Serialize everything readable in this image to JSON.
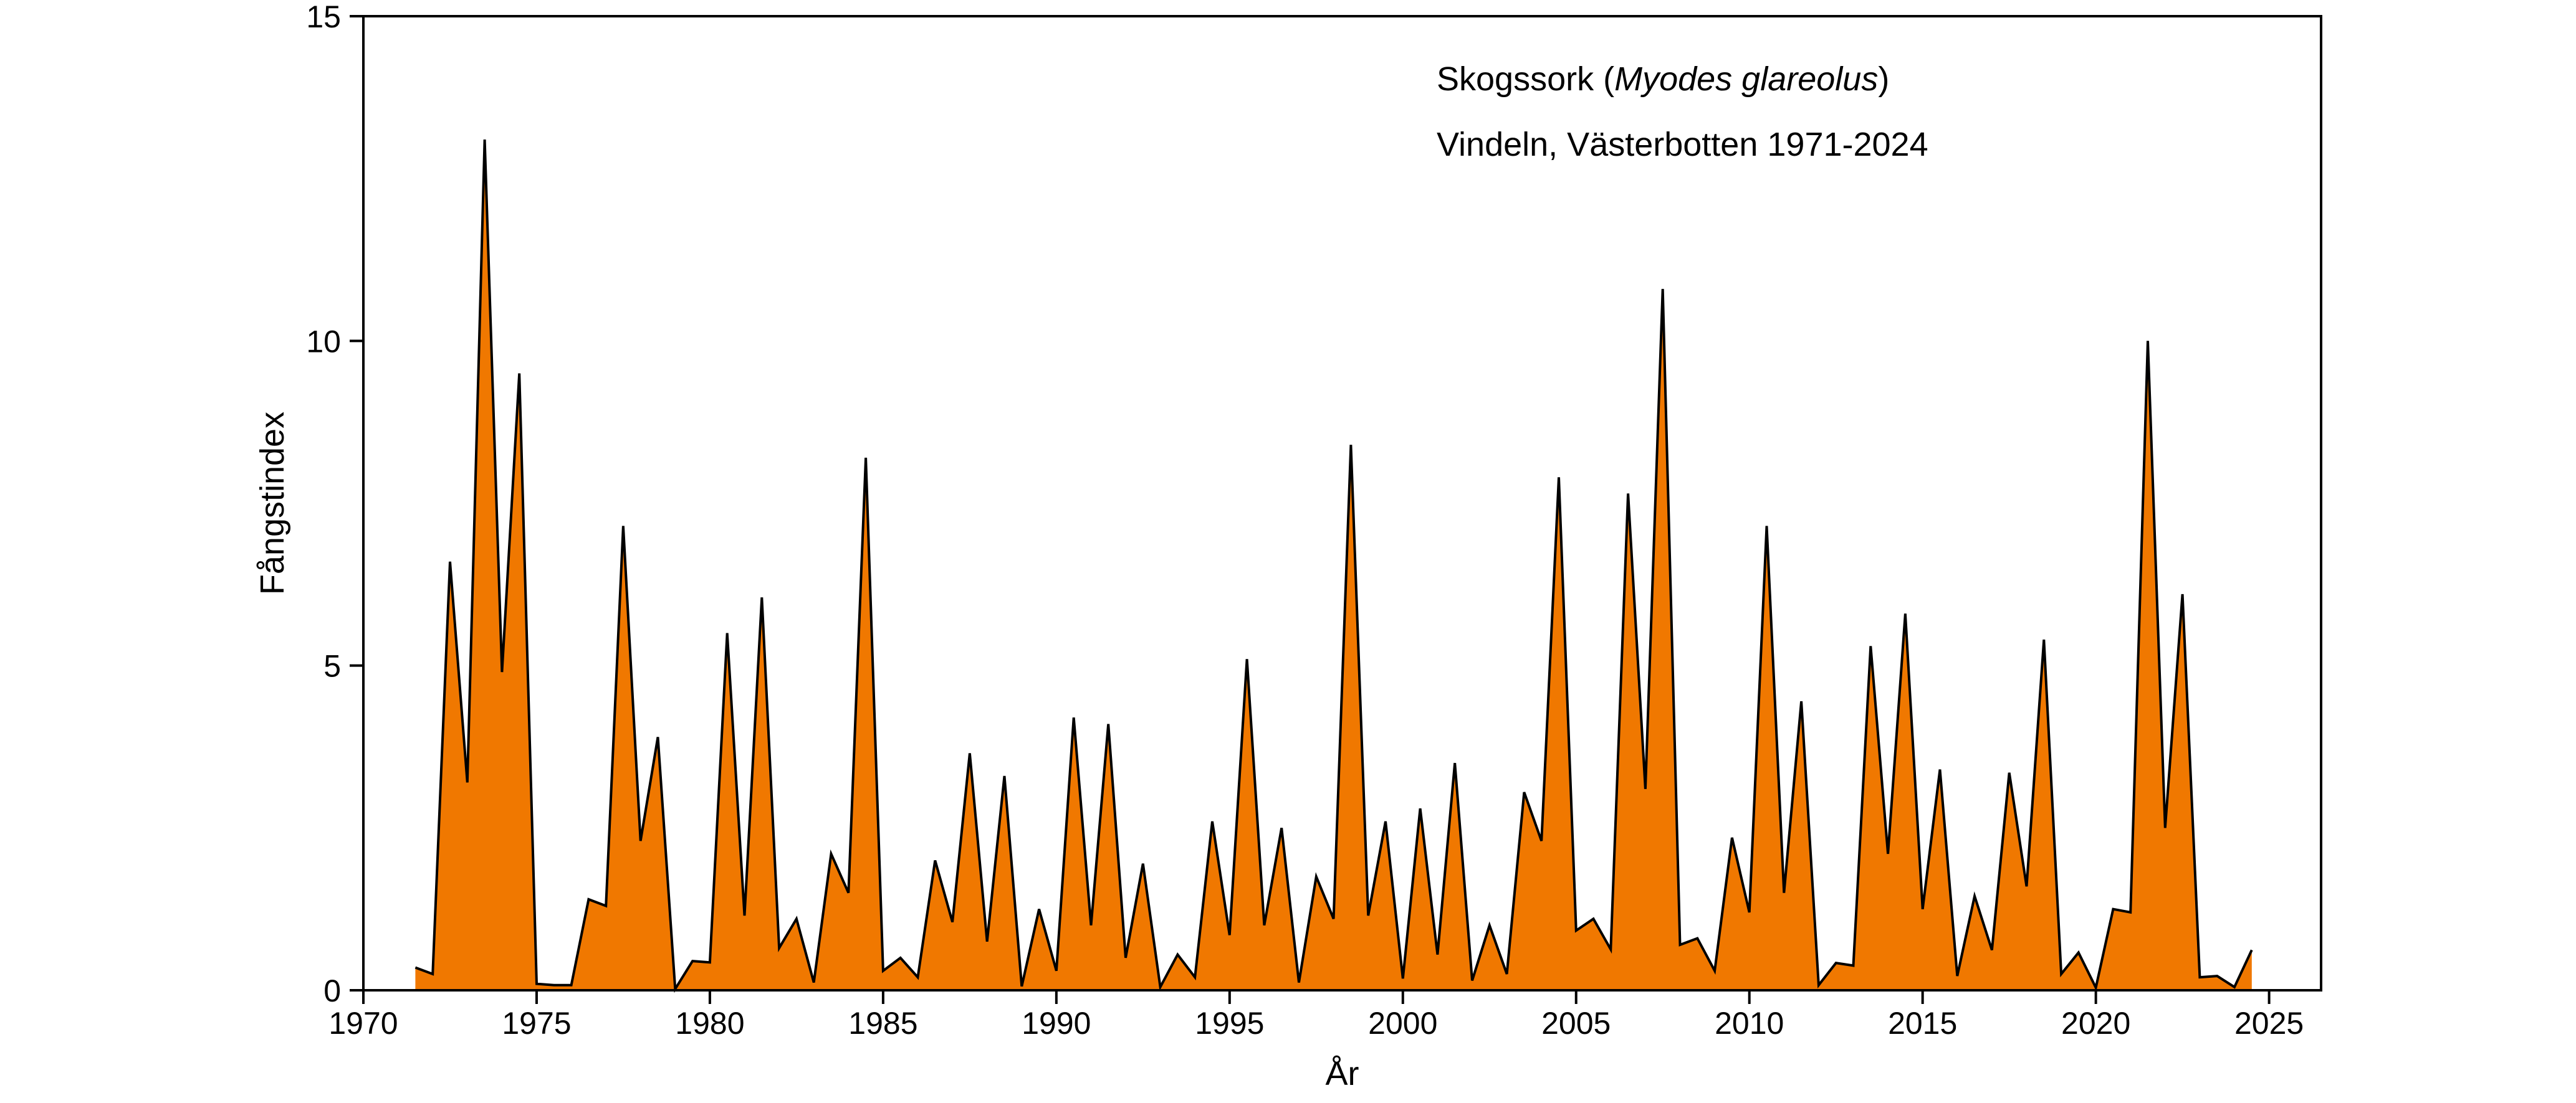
{
  "chart_data": {
    "type": "area",
    "title": "",
    "xlabel": "År",
    "ylabel": "Fångstindex",
    "xlim": [
      1970,
      2026.5
    ],
    "ylim": [
      0,
      15
    ],
    "xticks": [
      1970,
      1975,
      1980,
      1985,
      1990,
      1995,
      2000,
      2005,
      2010,
      2015,
      2020,
      2025
    ],
    "yticks": [
      0,
      5,
      10,
      15
    ],
    "grid": false,
    "legend": "none",
    "colors": {
      "fill": "#f07800",
      "line": "#000000"
    },
    "annotation": {
      "species_common": "Skogssork (",
      "species_latin": "Myodes glareolus",
      "species_close": ")",
      "location": "Vindeln, Västerbotten 1971-2024"
    },
    "series": [
      {
        "x": [
          1971.5,
          1972.0,
          1972.5,
          1973.0,
          1973.5,
          1974.0,
          1974.5,
          1975.0,
          1975.5,
          1976.0,
          1976.5,
          1977.0,
          1977.5,
          1978.0,
          1978.5,
          1979.0,
          1979.5,
          1980.0,
          1980.5,
          1981.0,
          1981.5,
          1982.0,
          1982.5,
          1983.0,
          1983.5,
          1984.0,
          1984.5,
          1985.0,
          1985.5,
          1986.0,
          1986.5,
          1987.0,
          1987.5,
          1988.0,
          1988.5,
          1989.0,
          1989.5,
          1990.0,
          1990.5,
          1991.0,
          1991.5,
          1992.0,
          1992.5,
          1993.0,
          1993.5,
          1994.0,
          1994.5,
          1995.0,
          1995.5,
          1996.0,
          1996.5,
          1997.0,
          1997.5,
          1998.0,
          1998.5,
          1999.0,
          1999.5,
          2000.0,
          2000.5,
          2001.0,
          2001.5,
          2002.0,
          2002.5,
          2003.0,
          2003.5,
          2004.0,
          2004.5,
          2005.0,
          2005.5,
          2006.0,
          2006.5,
          2007.0,
          2007.5,
          2008.0,
          2008.5,
          2009.0,
          2009.5,
          2010.0,
          2010.5,
          2011.0,
          2011.5,
          2012.0,
          2012.5,
          2013.0,
          2013.5,
          2014.0,
          2014.5,
          2015.0,
          2015.5,
          2016.0,
          2016.5,
          2017.0,
          2017.5,
          2018.0,
          2018.5,
          2019.0,
          2019.5,
          2020.0,
          2020.5,
          2021.0,
          2021.5,
          2022.0,
          2022.5,
          2023.0,
          2023.5,
          2024.0,
          2024.5
        ],
        "values": [
          0.35,
          0.25,
          6.6,
          3.2,
          13.1,
          4.9,
          9.5,
          0.1,
          0.08,
          0.08,
          1.4,
          1.3,
          7.15,
          2.3,
          3.9,
          0.02,
          0.45,
          0.43,
          5.5,
          1.15,
          6.05,
          0.65,
          1.1,
          0.12,
          2.1,
          1.5,
          8.2,
          0.3,
          0.5,
          0.2,
          2.0,
          1.05,
          3.65,
          0.75,
          3.3,
          0.06,
          1.25,
          0.3,
          4.2,
          1.0,
          4.1,
          0.5,
          1.95,
          0.05,
          0.55,
          0.2,
          2.6,
          0.85,
          5.1,
          1.0,
          2.5,
          0.12,
          1.75,
          1.1,
          8.4,
          1.15,
          2.6,
          0.18,
          2.8,
          0.55,
          3.5,
          0.15,
          1.0,
          0.25,
          3.05,
          2.3,
          7.9,
          0.92,
          1.1,
          0.63,
          7.65,
          3.1,
          10.8,
          0.7,
          0.8,
          0.3,
          2.35,
          1.2,
          7.15,
          1.5,
          4.45,
          0.08,
          0.42,
          0.38,
          5.3,
          2.1,
          5.8,
          1.25,
          3.4,
          0.22,
          1.45,
          0.62,
          3.35,
          1.6,
          5.4,
          0.25,
          0.58,
          0.04,
          1.25,
          1.2,
          10.0,
          2.5,
          6.1,
          0.2,
          0.22,
          0.05,
          0.62
        ]
      }
    ]
  }
}
